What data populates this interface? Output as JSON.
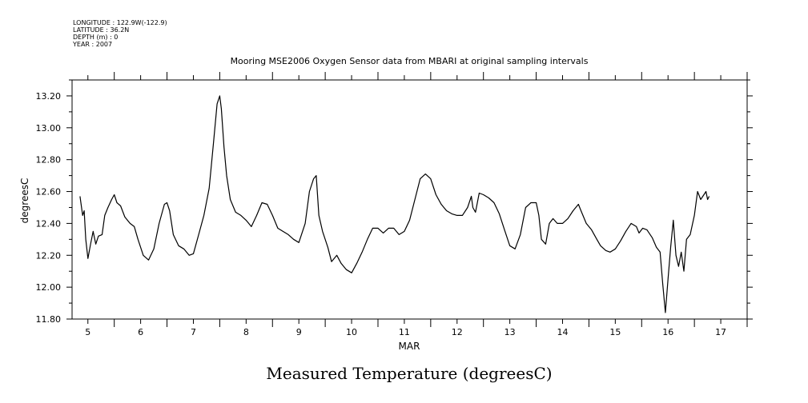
{
  "header": {
    "longitude": "LONGITUDE : 122.9W(-122.9)",
    "latitude": "LATITUDE : 36.2N",
    "depth": "DEPTH (m) : 0",
    "year": "YEAR : 2007"
  },
  "caption": "Measured Temperature (degreesC)",
  "chart_data": {
    "type": "line",
    "title": "Mooring MSE2006 Oxygen Sensor data from MBARI at original sampling intervals",
    "xlabel": "MAR",
    "ylabel": "degreesC",
    "xlim": [
      4.7,
      17.5
    ],
    "ylim": [
      11.8,
      13.3
    ],
    "x_ticks": [
      5,
      6,
      7,
      8,
      9,
      10,
      11,
      12,
      13,
      14,
      15,
      16,
      17
    ],
    "x_tick_labels": [
      "5",
      "6",
      "7",
      "8",
      "9",
      "10",
      "11",
      "12",
      "13",
      "14",
      "15",
      "16",
      "17"
    ],
    "y_ticks": [
      11.8,
      12.0,
      12.2,
      12.4,
      12.6,
      12.8,
      13.0,
      13.2
    ],
    "y_tick_labels": [
      "11.80",
      "12.00",
      "12.20",
      "12.40",
      "12.60",
      "12.80",
      "13.00",
      "13.20"
    ],
    "series": [
      {
        "color": "#000000",
        "points": [
          [
            4.85,
            12.57
          ],
          [
            4.9,
            12.45
          ],
          [
            4.93,
            12.48
          ],
          [
            4.96,
            12.3
          ],
          [
            5.0,
            12.18
          ],
          [
            5.05,
            12.27
          ],
          [
            5.1,
            12.35
          ],
          [
            5.15,
            12.27
          ],
          [
            5.2,
            12.32
          ],
          [
            5.27,
            12.33
          ],
          [
            5.32,
            12.45
          ],
          [
            5.38,
            12.5
          ],
          [
            5.45,
            12.55
          ],
          [
            5.5,
            12.58
          ],
          [
            5.55,
            12.53
          ],
          [
            5.62,
            12.51
          ],
          [
            5.7,
            12.44
          ],
          [
            5.8,
            12.4
          ],
          [
            5.88,
            12.38
          ],
          [
            5.95,
            12.3
          ],
          [
            6.05,
            12.2
          ],
          [
            6.15,
            12.17
          ],
          [
            6.25,
            12.24
          ],
          [
            6.35,
            12.4
          ],
          [
            6.45,
            12.52
          ],
          [
            6.5,
            12.53
          ],
          [
            6.55,
            12.48
          ],
          [
            6.62,
            12.33
          ],
          [
            6.72,
            12.26
          ],
          [
            6.82,
            12.24
          ],
          [
            6.92,
            12.2
          ],
          [
            7.0,
            12.21
          ],
          [
            7.1,
            12.33
          ],
          [
            7.2,
            12.45
          ],
          [
            7.3,
            12.62
          ],
          [
            7.38,
            12.9
          ],
          [
            7.45,
            13.15
          ],
          [
            7.5,
            13.2
          ],
          [
            7.53,
            13.12
          ],
          [
            7.58,
            12.88
          ],
          [
            7.63,
            12.7
          ],
          [
            7.7,
            12.55
          ],
          [
            7.8,
            12.47
          ],
          [
            7.9,
            12.45
          ],
          [
            8.0,
            12.42
          ],
          [
            8.1,
            12.38
          ],
          [
            8.2,
            12.45
          ],
          [
            8.3,
            12.53
          ],
          [
            8.4,
            12.52
          ],
          [
            8.5,
            12.45
          ],
          [
            8.6,
            12.37
          ],
          [
            8.7,
            12.35
          ],
          [
            8.8,
            12.33
          ],
          [
            8.9,
            12.3
          ],
          [
            9.0,
            12.28
          ],
          [
            9.12,
            12.4
          ],
          [
            9.2,
            12.6
          ],
          [
            9.28,
            12.68
          ],
          [
            9.33,
            12.7
          ],
          [
            9.38,
            12.45
          ],
          [
            9.45,
            12.35
          ],
          [
            9.55,
            12.25
          ],
          [
            9.62,
            12.16
          ],
          [
            9.72,
            12.2
          ],
          [
            9.8,
            12.15
          ],
          [
            9.9,
            12.11
          ],
          [
            10.0,
            12.09
          ],
          [
            10.1,
            12.15
          ],
          [
            10.2,
            12.22
          ],
          [
            10.3,
            12.3
          ],
          [
            10.4,
            12.37
          ],
          [
            10.5,
            12.37
          ],
          [
            10.6,
            12.34
          ],
          [
            10.7,
            12.37
          ],
          [
            10.8,
            12.37
          ],
          [
            10.9,
            12.33
          ],
          [
            11.0,
            12.35
          ],
          [
            11.1,
            12.42
          ],
          [
            11.2,
            12.55
          ],
          [
            11.3,
            12.68
          ],
          [
            11.4,
            12.71
          ],
          [
            11.5,
            12.68
          ],
          [
            11.6,
            12.58
          ],
          [
            11.7,
            12.52
          ],
          [
            11.8,
            12.48
          ],
          [
            11.9,
            12.46
          ],
          [
            12.0,
            12.45
          ],
          [
            12.1,
            12.45
          ],
          [
            12.2,
            12.5
          ],
          [
            12.27,
            12.57
          ],
          [
            12.3,
            12.5
          ],
          [
            12.35,
            12.47
          ],
          [
            12.42,
            12.59
          ],
          [
            12.5,
            12.58
          ],
          [
            12.6,
            12.56
          ],
          [
            12.7,
            12.53
          ],
          [
            12.8,
            12.46
          ],
          [
            12.9,
            12.36
          ],
          [
            13.0,
            12.26
          ],
          [
            13.1,
            12.24
          ],
          [
            13.2,
            12.33
          ],
          [
            13.3,
            12.5
          ],
          [
            13.4,
            12.53
          ],
          [
            13.5,
            12.53
          ],
          [
            13.55,
            12.45
          ],
          [
            13.6,
            12.3
          ],
          [
            13.68,
            12.27
          ],
          [
            13.75,
            12.4
          ],
          [
            13.82,
            12.43
          ],
          [
            13.9,
            12.4
          ],
          [
            14.0,
            12.4
          ],
          [
            14.1,
            12.43
          ],
          [
            14.2,
            12.48
          ],
          [
            14.3,
            12.52
          ],
          [
            14.35,
            12.48
          ],
          [
            14.45,
            12.4
          ],
          [
            14.55,
            12.36
          ],
          [
            14.65,
            12.3
          ],
          [
            14.72,
            12.26
          ],
          [
            14.82,
            12.23
          ],
          [
            14.9,
            12.22
          ],
          [
            15.0,
            12.24
          ],
          [
            15.1,
            12.29
          ],
          [
            15.2,
            12.35
          ],
          [
            15.3,
            12.4
          ],
          [
            15.4,
            12.38
          ],
          [
            15.45,
            12.34
          ],
          [
            15.52,
            12.37
          ],
          [
            15.6,
            12.36
          ],
          [
            15.7,
            12.31
          ],
          [
            15.78,
            12.25
          ],
          [
            15.85,
            12.22
          ],
          [
            15.9,
            12.02
          ],
          [
            15.95,
            11.84
          ],
          [
            16.0,
            12.05
          ],
          [
            16.05,
            12.25
          ],
          [
            16.1,
            12.42
          ],
          [
            16.15,
            12.2
          ],
          [
            16.2,
            12.13
          ],
          [
            16.25,
            12.22
          ],
          [
            16.3,
            12.1
          ],
          [
            16.35,
            12.3
          ],
          [
            16.42,
            12.33
          ],
          [
            16.5,
            12.45
          ],
          [
            16.56,
            12.6
          ],
          [
            16.62,
            12.55
          ],
          [
            16.68,
            12.58
          ],
          [
            16.72,
            12.6
          ],
          [
            16.75,
            12.55
          ],
          [
            16.78,
            12.57
          ]
        ]
      }
    ]
  }
}
